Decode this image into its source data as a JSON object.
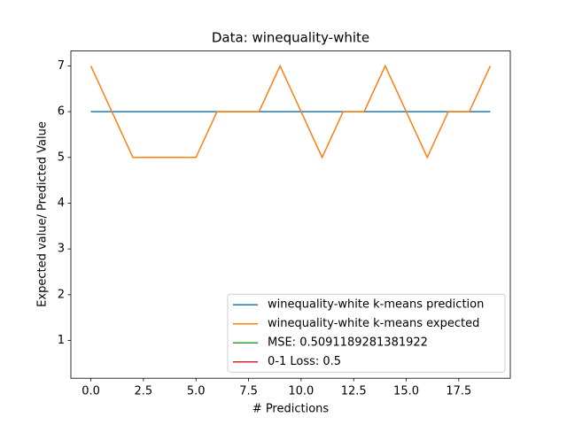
{
  "chart_data": {
    "type": "line",
    "title": "Data: winequality-white",
    "xlabel": "# Predictions",
    "ylabel": "Expected value/ Predicted Value",
    "x": [
      0,
      1,
      2,
      3,
      4,
      5,
      6,
      7,
      8,
      9,
      10,
      11,
      12,
      13,
      14,
      15,
      16,
      17,
      18,
      19
    ],
    "series": [
      {
        "name": "winequality-white k-means prediction",
        "color": "#1f77b4",
        "values": [
          6,
          6,
          6,
          6,
          6,
          6,
          6,
          6,
          6,
          6,
          6,
          6,
          6,
          6,
          6,
          6,
          6,
          6,
          6,
          6
        ]
      },
      {
        "name": "winequality-white k-means expected",
        "color": "#ff7f0e",
        "values": [
          7,
          6,
          5,
          5,
          5,
          5,
          6,
          6,
          6,
          7,
          6,
          5,
          6,
          6,
          7,
          6,
          5,
          6,
          6,
          7
        ]
      },
      {
        "name": "MSE: 0.5091189281381922",
        "color": "#2ca02c"
      },
      {
        "name": "0-1 Loss: 0.5",
        "color": "#d62728"
      }
    ],
    "xlim": [
      -0.95,
      19.95
    ],
    "xticks": [
      {
        "value": 0,
        "label": "0.0"
      },
      {
        "value": 2.5,
        "label": "2.5"
      },
      {
        "value": 5,
        "label": "5.0"
      },
      {
        "value": 7.5,
        "label": "7.5"
      },
      {
        "value": 10,
        "label": "10.0"
      },
      {
        "value": 12.5,
        "label": "12.5"
      },
      {
        "value": 15,
        "label": "15.0"
      },
      {
        "value": 17.5,
        "label": "17.5"
      }
    ],
    "ylim": [
      0.175,
      7.325
    ],
    "yticks": [
      1,
      2,
      3,
      4,
      5,
      6,
      7
    ],
    "grid": false,
    "legend": "lower right"
  }
}
